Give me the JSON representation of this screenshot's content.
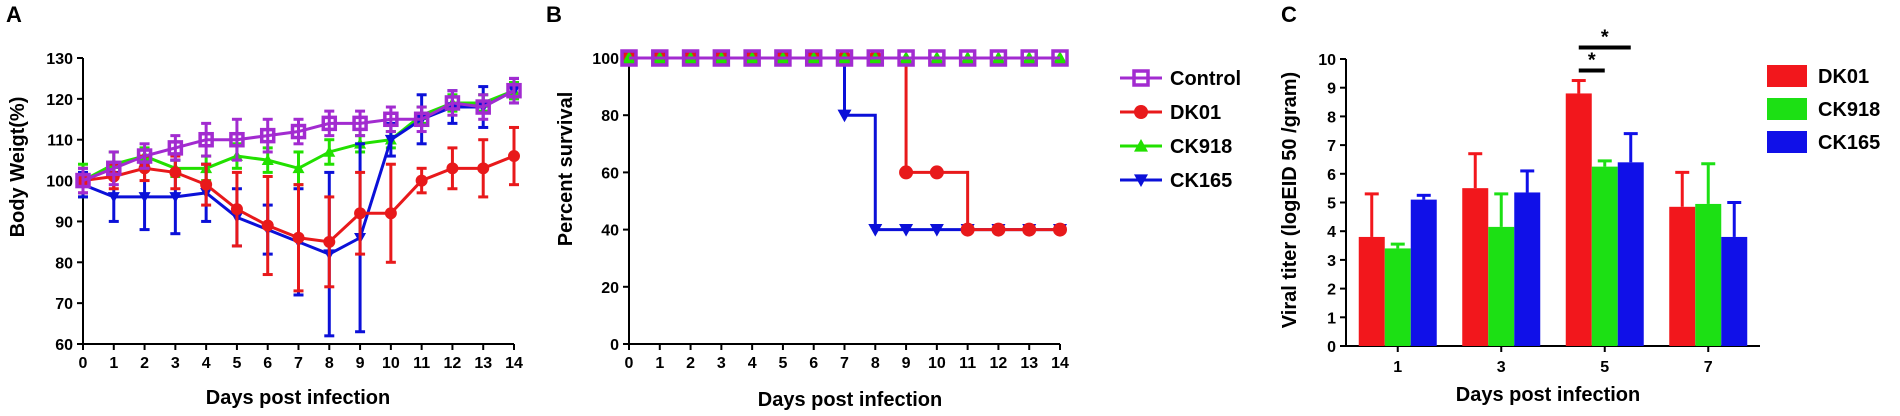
{
  "panels": {
    "a": {
      "letter": "A"
    },
    "b": {
      "letter": "B"
    },
    "c": {
      "letter": "C"
    }
  },
  "chart_data": [
    {
      "type": "line",
      "panel": "A",
      "xlabel": "Days  post  infection",
      "ylabel": "Body Weigt(%)",
      "x": [
        0,
        1,
        2,
        3,
        4,
        5,
        6,
        7,
        8,
        9,
        10,
        11,
        12,
        13,
        14
      ],
      "xlim": [
        0,
        14
      ],
      "ylim": [
        60,
        130
      ],
      "yticks": [
        60,
        70,
        80,
        90,
        100,
        110,
        120,
        130
      ],
      "grid": false,
      "legend": false,
      "series": [
        {
          "name": "CK918",
          "color": "#22e000",
          "marker": "triangle-up",
          "values": [
            100,
            104,
            106,
            103,
            103,
            106,
            105,
            103,
            107,
            109,
            110,
            116,
            119,
            119,
            122
          ],
          "errors": [
            4,
            3,
            2,
            2,
            3,
            3,
            3,
            4,
            3,
            2,
            2,
            2,
            2,
            2,
            2
          ]
        },
        {
          "name": "CK165",
          "color": "#0b10d8",
          "marker": "triangle-down",
          "values": [
            99,
            96,
            96,
            96,
            97,
            91,
            88,
            85,
            82,
            86,
            110,
            115,
            118,
            118,
            122
          ],
          "errors": [
            3,
            6,
            8,
            9,
            7,
            7,
            6,
            13,
            20,
            23,
            4,
            6,
            4,
            5,
            3
          ]
        },
        {
          "name": "DK01",
          "color": "#e8191b",
          "marker": "circle",
          "values": [
            100,
            101,
            103,
            102,
            99,
            93,
            89,
            86,
            85,
            92,
            92,
            100,
            103,
            103,
            106
          ],
          "errors": [
            3,
            3,
            3,
            4,
            5,
            9,
            12,
            13,
            11,
            10,
            12,
            3,
            5,
            7,
            7
          ]
        },
        {
          "name": "Control",
          "color": "#a22bd0",
          "marker": "square-open",
          "values": [
            100,
            103,
            106,
            108,
            110,
            110,
            111,
            112,
            114,
            114,
            115,
            115,
            119,
            118,
            122
          ],
          "errors": [
            3,
            4,
            3,
            3,
            4,
            5,
            4,
            3,
            3,
            3,
            3,
            3,
            3,
            3,
            3
          ]
        }
      ]
    },
    {
      "type": "line",
      "panel": "B",
      "step": true,
      "xlabel": "Days  post  infection",
      "ylabel": "Percent survival",
      "x": [
        0,
        1,
        2,
        3,
        4,
        5,
        6,
        7,
        8,
        9,
        10,
        11,
        12,
        13,
        14
      ],
      "xlim": [
        0,
        14
      ],
      "ylim": [
        0,
        100
      ],
      "yticks": [
        0,
        20,
        40,
        60,
        80,
        100
      ],
      "grid": false,
      "legend": "right",
      "series": [
        {
          "name": "Control",
          "color": "#a22bd0",
          "marker": "square-open",
          "values": [
            100,
            100,
            100,
            100,
            100,
            100,
            100,
            100,
            100,
            100,
            100,
            100,
            100,
            100,
            100
          ]
        },
        {
          "name": "DK01",
          "color": "#e8191b",
          "marker": "circle",
          "values": [
            100,
            100,
            100,
            100,
            100,
            100,
            100,
            100,
            100,
            60,
            60,
            40,
            40,
            40,
            40
          ]
        },
        {
          "name": "CK918",
          "color": "#22e000",
          "marker": "triangle-up",
          "values": [
            100,
            100,
            100,
            100,
            100,
            100,
            100,
            100,
            100,
            100,
            100,
            100,
            100,
            100,
            100
          ]
        },
        {
          "name": "CK165",
          "color": "#0b10d8",
          "marker": "triangle-down",
          "values": [
            100,
            100,
            100,
            100,
            100,
            100,
            100,
            80,
            40,
            40,
            40,
            40,
            40,
            40,
            40
          ]
        }
      ]
    },
    {
      "type": "bar",
      "panel": "C",
      "xlabel": "Days  post  infection",
      "ylabel": "Viral titer (logEID 50 /gram)",
      "categories": [
        "1",
        "3",
        "5",
        "7"
      ],
      "ylim": [
        0,
        10
      ],
      "yticks": [
        0,
        1,
        2,
        3,
        4,
        5,
        6,
        7,
        8,
        9,
        10
      ],
      "grid": false,
      "legend": "right",
      "series": [
        {
          "name": "DK01",
          "color": "#f2171c",
          "values": [
            3.8,
            5.5,
            8.8,
            4.85
          ],
          "errors": [
            1.5,
            1.2,
            0.45,
            1.2
          ]
        },
        {
          "name": "CK918",
          "color": "#1ce014",
          "values": [
            3.4,
            4.15,
            6.25,
            4.95
          ],
          "errors": [
            0.15,
            1.15,
            0.2,
            1.4
          ]
        },
        {
          "name": "CK165",
          "color": "#1010e8",
          "values": [
            5.1,
            5.35,
            6.4,
            3.8
          ],
          "errors": [
            0.15,
            0.75,
            1.0,
            1.2
          ]
        }
      ],
      "annotations": [
        {
          "text": "*",
          "day": "5",
          "between": [
            "DK01",
            "CK918"
          ],
          "y": 9.6
        },
        {
          "text": "*",
          "day": "5",
          "between": [
            "DK01",
            "CK165"
          ],
          "y": 10.4
        }
      ]
    }
  ]
}
